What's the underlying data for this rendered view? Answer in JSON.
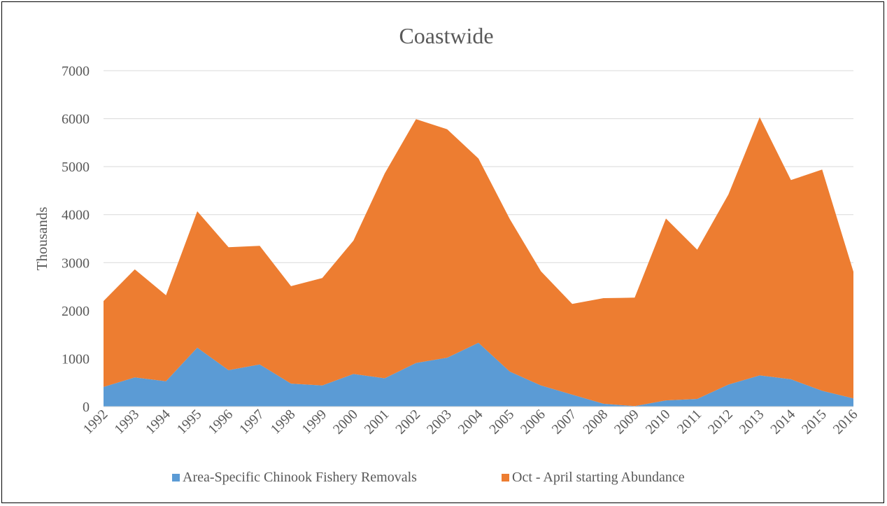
{
  "chart_data": {
    "type": "area",
    "stacked": true,
    "title": "Coastwide",
    "xlabel": "",
    "ylabel": "Thousands",
    "ylim": [
      0,
      7000
    ],
    "yticks": [
      0,
      1000,
      2000,
      3000,
      4000,
      5000,
      6000,
      7000
    ],
    "grid": true,
    "legend_position": "bottom",
    "categories": [
      "1992",
      "1993",
      "1994",
      "1995",
      "1996",
      "1997",
      "1998",
      "1999",
      "2000",
      "2001",
      "2002",
      "2003",
      "2004",
      "2005",
      "2006",
      "2007",
      "2008",
      "2009",
      "2010",
      "2011",
      "2012",
      "2013",
      "2014",
      "2015",
      "2016"
    ],
    "series": [
      {
        "name": "Area-Specific Chinook Fishery Removals",
        "color": "#5B9BD5",
        "values": [
          410,
          610,
          530,
          1230,
          760,
          880,
          480,
          440,
          680,
          590,
          910,
          1020,
          1330,
          730,
          440,
          250,
          60,
          10,
          130,
          160,
          460,
          650,
          570,
          330,
          170
        ]
      },
      {
        "name": "Oct - April starting Abundance",
        "color": "#ED7D31",
        "values": [
          1790,
          2250,
          1790,
          2840,
          2560,
          2470,
          2030,
          2240,
          2780,
          4270,
          5080,
          4760,
          3840,
          3180,
          2380,
          1890,
          2200,
          2260,
          3790,
          3110,
          3960,
          5380,
          4150,
          4610,
          2640
        ]
      }
    ]
  }
}
